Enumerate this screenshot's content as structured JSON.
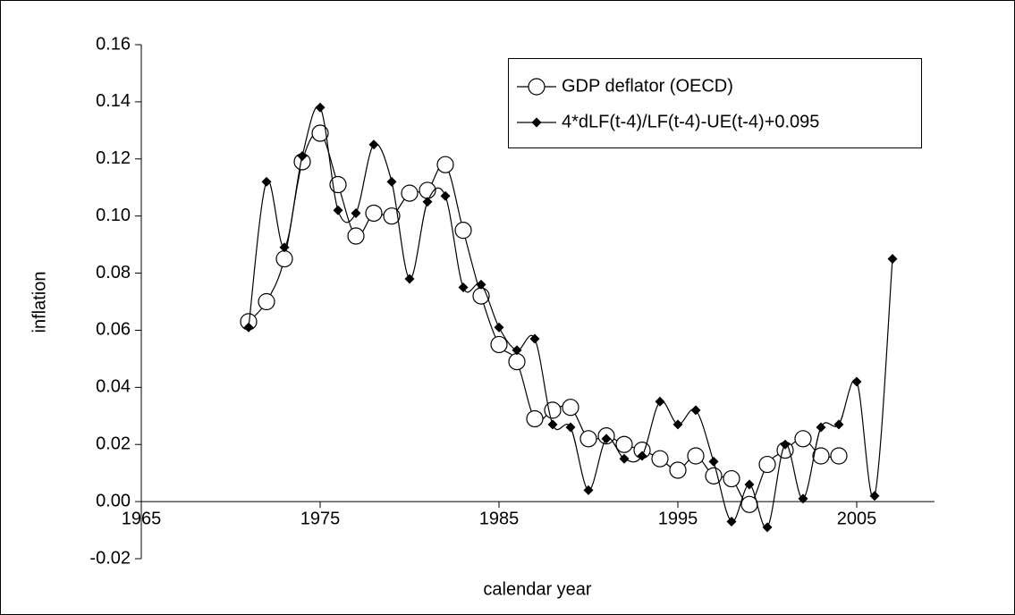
{
  "chart_data": {
    "type": "line",
    "x_label": "calendar year",
    "y_label": "inflation",
    "xlim": [
      1965,
      2009.35
    ],
    "xticks": [
      1965,
      1975,
      1985,
      1995,
      2005
    ],
    "ylim": [
      -0.02,
      0.16
    ],
    "yticks": [
      {
        "value": -0.02,
        "label": "-0.02"
      },
      {
        "value": 0,
        "label": "0.00"
      },
      {
        "value": 0.02,
        "label": "0.02"
      },
      {
        "value": 0.04,
        "label": "0.04"
      },
      {
        "value": 0.06,
        "label": "0.06"
      },
      {
        "value": 0.08,
        "label": "0.08"
      },
      {
        "value": 0.1,
        "label": "0.10"
      },
      {
        "value": 0.12,
        "label": "0.12"
      },
      {
        "value": 0.14,
        "label": "0.14"
      },
      {
        "value": 0.16,
        "label": "0.16"
      }
    ],
    "legend": "upper right",
    "series": [
      {
        "name": "GDP deflator (OECD)",
        "color": "#000000",
        "marker": "circle",
        "x": [
          1971,
          1972,
          1973,
          1974,
          1975,
          1976,
          1977,
          1978,
          1979,
          1980,
          1981,
          1982,
          1983,
          1984,
          1985,
          1986,
          1987,
          1988,
          1989,
          1990,
          1991,
          1992,
          1993,
          1994,
          1995,
          1996,
          1997,
          1998,
          1999,
          2000,
          2001,
          2002,
          2003,
          2004
        ],
        "values": [
          0.063,
          0.07,
          0.085,
          0.119,
          0.129,
          0.111,
          0.093,
          0.101,
          0.1,
          0.108,
          0.109,
          0.118,
          0.095,
          0.072,
          0.055,
          0.049,
          0.029,
          0.032,
          0.033,
          0.022,
          0.023,
          0.02,
          0.018,
          0.015,
          0.011,
          0.016,
          0.009,
          0.008,
          -0.001,
          0.013,
          0.018,
          0.022,
          0.016,
          0.016
        ]
      },
      {
        "name": "4*dLF(t-4)/LF(t-4)-UE(t-4)+0.095",
        "color": "#000000",
        "marker": "diamond",
        "x": [
          1971,
          1972,
          1973,
          1974,
          1975,
          1976,
          1977,
          1978,
          1979,
          1980,
          1981,
          1982,
          1983,
          1984,
          1985,
          1986,
          1987,
          1988,
          1989,
          1990,
          1991,
          1992,
          1993,
          1994,
          1995,
          1996,
          1997,
          1998,
          1999,
          2000,
          2001,
          2002,
          2003,
          2004,
          2005,
          2006,
          2007
        ],
        "values": [
          0.061,
          0.112,
          0.089,
          0.121,
          0.138,
          0.102,
          0.101,
          0.125,
          0.112,
          0.078,
          0.105,
          0.107,
          0.075,
          0.076,
          0.061,
          0.053,
          0.057,
          0.027,
          0.026,
          0.004,
          0.022,
          0.015,
          0.016,
          0.035,
          0.027,
          0.032,
          0.014,
          -0.007,
          0.006,
          -0.009,
          0.02,
          0.001,
          0.026,
          0.027,
          0.042,
          0.002,
          0.085
        ]
      }
    ]
  }
}
